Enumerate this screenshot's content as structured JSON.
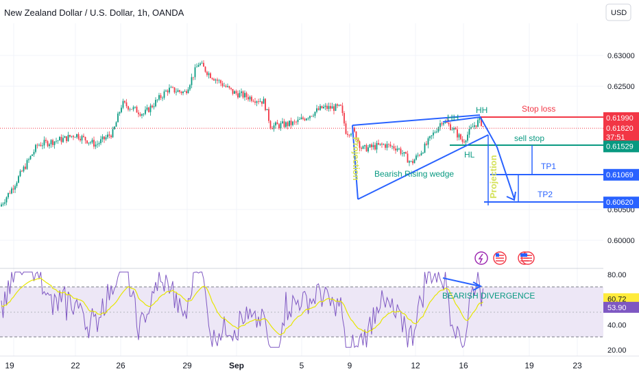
{
  "chart_data": {
    "type": "candlestick",
    "title": "New Zealand Dollar / U.S. Dollar, 1h, OANDA",
    "currency": "USD",
    "price_axis": {
      "ticks": [
        "0.63000",
        "0.62500",
        "0.60500",
        "0.60000"
      ],
      "tick_values": [
        0.63,
        0.625,
        0.605,
        0.6
      ],
      "range": [
        0.5945,
        0.6395
      ]
    },
    "x_ticks": [
      "19",
      "22",
      "26",
      "29",
      "Sep",
      "5",
      "9",
      "12",
      "16",
      "19",
      "23"
    ],
    "price_tags": [
      {
        "id": "stop",
        "label": "0.61990",
        "value": 0.6199,
        "color": "#f23645"
      },
      {
        "id": "last",
        "label": "0.61820",
        "countdown": "37:51",
        "value": 0.6182,
        "color": "#f23645"
      },
      {
        "id": "sellstop",
        "label": "0.61529",
        "value": 0.61529,
        "color": "#089981"
      },
      {
        "id": "tp1",
        "label": "0.61069",
        "value": 0.61069,
        "color": "#2962ff"
      },
      {
        "id": "tp2",
        "label": "0.60620",
        "value": 0.6062,
        "color": "#2962ff"
      }
    ],
    "annotations": {
      "stop_loss": "Stop loss",
      "sell_stop": "sell stop",
      "tp1": "TP1",
      "tp2": "TP2",
      "hh1": "HH",
      "hh2": "HH",
      "hl": "HL",
      "wedge": "Bearish Rising wedge",
      "projection1": "Projection",
      "projection2": "Projection",
      "divergence": "BEARISH DIVERGENCE"
    },
    "rsi": {
      "ticks": [
        "80.00",
        "40.00",
        "20.00"
      ],
      "tick_values": [
        80,
        40,
        20
      ],
      "levels": [
        70,
        30
      ],
      "range": [
        15,
        85
      ],
      "value_label": "60.72",
      "value": 60.72,
      "ma_label": "53.90",
      "ma": 53.9
    },
    "path_key_points": [
      [
        0,
        0.6055
      ],
      [
        18,
        0.6085
      ],
      [
        55,
        0.6155
      ],
      [
        95,
        0.6165
      ],
      [
        110,
        0.6172
      ],
      [
        140,
        0.6155
      ],
      [
        165,
        0.6175
      ],
      [
        178,
        0.6222
      ],
      [
        210,
        0.6205
      ],
      [
        245,
        0.6245
      ],
      [
        270,
        0.624
      ],
      [
        290,
        0.6288
      ],
      [
        305,
        0.627
      ],
      [
        340,
        0.624
      ],
      [
        385,
        0.6225
      ],
      [
        395,
        0.6185
      ],
      [
        430,
        0.619
      ],
      [
        470,
        0.6215
      ],
      [
        497,
        0.6215
      ],
      [
        505,
        0.6175
      ],
      [
        515,
        0.6178
      ],
      [
        528,
        0.6148
      ],
      [
        560,
        0.6155
      ],
      [
        580,
        0.615
      ],
      [
        600,
        0.6125
      ],
      [
        620,
        0.6152
      ],
      [
        645,
        0.6195
      ],
      [
        660,
        0.6182
      ],
      [
        675,
        0.616
      ],
      [
        690,
        0.6185
      ],
      [
        700,
        0.6195
      ],
      [
        706,
        0.6182
      ]
    ],
    "grid": true,
    "legend": "none"
  }
}
